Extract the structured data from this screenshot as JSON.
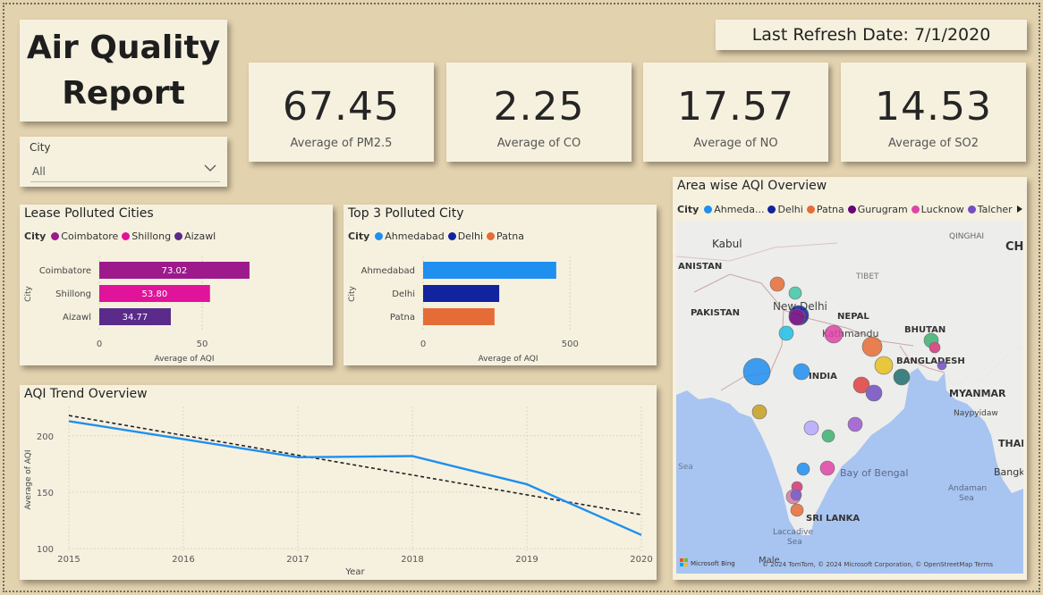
{
  "report": {
    "title_line1": "Air Quality",
    "title_line2": "Report",
    "refresh": "Last Refresh Date: 7/1/2020"
  },
  "slicer": {
    "label": "City",
    "value": "All",
    "icon": "chevron-down-icon"
  },
  "kpis": [
    {
      "value": "67.45",
      "label": "Average of PM2.5"
    },
    {
      "value": "2.25",
      "label": "Average of CO"
    },
    {
      "value": "17.57",
      "label": "Average of NO"
    },
    {
      "value": "14.53",
      "label": "Average of SO2"
    }
  ],
  "least_polluted": {
    "title": "Lease Polluted Cities",
    "legend_title": "City",
    "chart_data": {
      "type": "bar",
      "categories": [
        "Coimbatore",
        "Shillong",
        "Aizawl"
      ],
      "values": [
        73.02,
        53.8,
        34.77
      ],
      "labels": [
        "73.02",
        "53.80",
        "34.77"
      ],
      "colors": [
        "#9c1a8c",
        "#e0139a",
        "#5a2b8a"
      ],
      "xlabel": "Average of AQI",
      "ylabel": "City",
      "xticks": [
        0,
        50
      ],
      "xtick_labels": [
        "0",
        "50"
      ],
      "xlim": [
        0,
        100
      ]
    }
  },
  "top_polluted": {
    "title": "Top 3 Polluted City",
    "legend_title": "City",
    "chart_data": {
      "type": "bar",
      "categories": [
        "Ahmedabad",
        "Delhi",
        "Patna"
      ],
      "values": [
        453,
        259,
        243
      ],
      "colors": [
        "#1f8ff0",
        "#12239e",
        "#e66c37"
      ],
      "xlabel": "Average of AQI",
      "ylabel": "City",
      "xticks": [
        0,
        500
      ],
      "xtick_labels": [
        "0",
        "500"
      ],
      "xlim": [
        0,
        700
      ]
    }
  },
  "trend": {
    "title": "AQI Trend Overview",
    "chart_data": {
      "type": "line",
      "x": [
        2015,
        2016,
        2017,
        2018,
        2019,
        2020
      ],
      "x_labels": [
        "2015",
        "2016",
        "2017",
        "2018",
        "2019",
        "2020"
      ],
      "series": [
        {
          "values": [
            213,
            197,
            181,
            182,
            157,
            112
          ],
          "color": "#1f8ff0"
        }
      ],
      "trendline": {
        "start": 218,
        "end": 130,
        "color": "#222"
      },
      "yticks": [
        100,
        150,
        200
      ],
      "ytick_labels": [
        "100",
        "150",
        "200"
      ],
      "ylim": [
        96,
        226
      ],
      "xlabel": "Year",
      "ylabel": "Average of AQI"
    }
  },
  "map": {
    "title": "Area wise AQI Overview",
    "legend_title": "City",
    "legend": [
      {
        "name": "Ahmeda...",
        "color": "#1f8ff0"
      },
      {
        "name": "Delhi",
        "color": "#12239e"
      },
      {
        "name": "Patna",
        "color": "#e66c37"
      },
      {
        "name": "Gurugram",
        "color": "#6b007b"
      },
      {
        "name": "Lucknow",
        "color": "#e044a7"
      },
      {
        "name": "Talcher",
        "color": "#744ec2"
      }
    ],
    "labels": {
      "kabul": "Kabul",
      "qinghai": "QINGHAI",
      "ch": "CH",
      "afghanistan": "ANISTAN",
      "tibet": "TIBET",
      "pakistan": "PAKISTAN",
      "nepal": "NEPAL",
      "new_delhi": "New Delhi",
      "kathmandu": "Kathmandu",
      "bhutan": "BHUTAN",
      "bangladesh": "BANGLADESH",
      "india": "INDIA",
      "myanmar": "MYANMAR",
      "naypyidaw": "Naypyidaw",
      "thai": "THAI",
      "sea": "Sea",
      "bay": "Bay of Bengal",
      "andaman": "Andaman",
      "andaman2": "Sea",
      "bangk": "Bangk",
      "sri_lanka": "SRI LANKA",
      "laccadive": "Laccadive",
      "laccadive2": "Sea",
      "male": "Male",
      "bing": "Microsoft Bing",
      "copyright": "© 2024 TomTom, © 2024 Microsoft Corporation, © OpenStreetMap  Terms"
    }
  }
}
